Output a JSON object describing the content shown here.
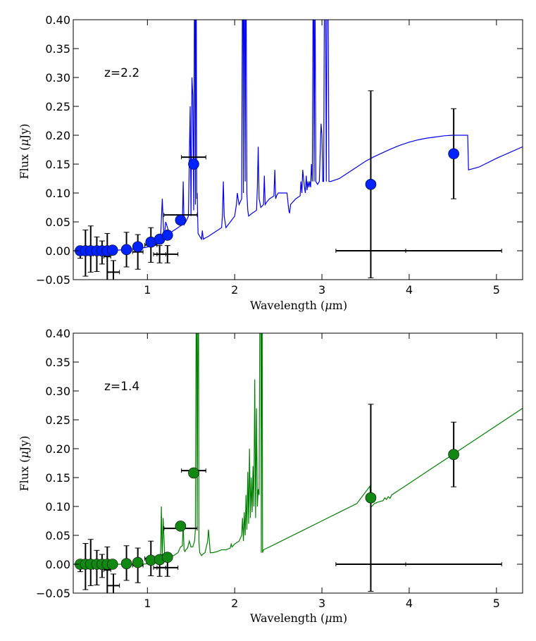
{
  "chart_data": [
    {
      "type": "line",
      "panel": "top",
      "annotation": "z=2.2",
      "xlabel": "Wavelength (μm)",
      "ylabel": "Flux (μJy)",
      "xlim": [
        0.15,
        5.3
      ],
      "ylim": [
        -0.05,
        0.4
      ],
      "xticks": [
        1,
        2,
        3,
        4,
        5
      ],
      "xtick_labels": [
        "1",
        "2",
        "3",
        "4",
        "5"
      ],
      "yticks": [
        -0.05,
        0.0,
        0.05,
        0.1,
        0.15,
        0.2,
        0.25,
        0.3,
        0.35,
        0.4
      ],
      "ytick_labels": [
        "−0.05",
        "0.00",
        "0.05",
        "0.10",
        "0.15",
        "0.20",
        "0.25",
        "0.30",
        "0.35",
        "0.40"
      ],
      "model_color": "#0000ee",
      "marker_color": "#0022ff",
      "model": {
        "x": [
          0.15,
          0.25,
          0.35,
          0.45,
          0.55,
          0.65,
          0.75,
          0.85,
          0.95,
          1.05,
          1.12,
          1.15,
          1.17,
          1.19,
          1.21,
          1.25,
          1.3,
          1.35,
          1.4,
          1.41,
          1.42,
          1.44,
          1.47,
          1.49,
          1.5,
          1.51,
          1.52,
          1.53,
          1.54,
          1.545,
          1.55,
          1.555,
          1.56,
          1.565,
          1.57,
          1.58,
          1.6,
          1.62,
          1.63,
          1.64,
          1.66,
          1.7,
          1.75,
          1.8,
          1.85,
          1.86,
          1.87,
          1.88,
          1.9,
          1.95,
          2.0,
          2.01,
          2.02,
          2.03,
          2.05,
          2.08,
          2.09,
          2.095,
          2.1,
          2.105,
          2.11,
          2.12,
          2.125,
          2.13,
          2.14,
          2.15,
          2.16,
          2.2,
          2.25,
          2.26,
          2.27,
          2.28,
          2.3,
          2.33,
          2.34,
          2.35,
          2.37,
          2.4,
          2.45,
          2.46,
          2.47,
          2.48,
          2.5,
          2.55,
          2.6,
          2.62,
          2.63,
          2.64,
          2.7,
          2.75,
          2.76,
          2.77,
          2.78,
          2.8,
          2.81,
          2.82,
          2.83,
          2.84,
          2.85,
          2.86,
          2.87,
          2.88,
          2.89,
          2.9,
          2.905,
          2.91,
          2.92,
          2.93,
          2.95,
          2.97,
          2.99,
          3.0,
          3.01,
          3.02,
          3.03,
          3.04,
          3.05,
          3.06,
          3.07,
          3.08,
          3.1,
          3.2,
          3.3,
          3.4,
          3.5,
          3.6,
          3.7,
          3.8,
          3.9,
          4.0,
          4.1,
          4.2,
          4.3,
          4.4,
          4.5,
          4.6,
          4.67,
          4.68,
          4.8,
          5.0,
          5.3
        ],
        "y": [
          0.0,
          0.0,
          0.0,
          0.0,
          0.001,
          0.001,
          0.002,
          0.003,
          0.005,
          0.008,
          0.012,
          0.02,
          0.09,
          0.02,
          0.05,
          0.03,
          0.035,
          0.04,
          0.045,
          0.12,
          0.045,
          0.05,
          0.06,
          0.25,
          0.06,
          0.3,
          0.27,
          0.07,
          0.5,
          0.5,
          0.08,
          0.4,
          0.4,
          0.09,
          0.1,
          0.03,
          0.025,
          0.02,
          0.035,
          0.02,
          0.022,
          0.025,
          0.03,
          0.035,
          0.04,
          0.06,
          0.12,
          0.06,
          0.04,
          0.05,
          0.06,
          0.07,
          0.08,
          0.1,
          0.08,
          0.09,
          0.5,
          0.5,
          0.1,
          0.5,
          0.5,
          0.12,
          0.5,
          0.5,
          0.1,
          0.07,
          0.06,
          0.065,
          0.07,
          0.11,
          0.18,
          0.09,
          0.075,
          0.08,
          0.13,
          0.08,
          0.085,
          0.09,
          0.095,
          0.14,
          0.09,
          0.095,
          0.1,
          0.1,
          0.1,
          0.07,
          0.065,
          0.08,
          0.09,
          0.095,
          0.12,
          0.1,
          0.14,
          0.11,
          0.1,
          0.13,
          0.105,
          0.12,
          0.11,
          0.12,
          0.11,
          0.15,
          0.12,
          0.5,
          0.5,
          0.12,
          0.5,
          0.12,
          0.115,
          0.12,
          0.22,
          0.2,
          0.12,
          0.12,
          0.5,
          0.5,
          0.12,
          0.5,
          0.5,
          0.12,
          0.12,
          0.125,
          0.135,
          0.145,
          0.155,
          0.163,
          0.17,
          0.177,
          0.183,
          0.188,
          0.192,
          0.195,
          0.197,
          0.199,
          0.2,
          0.2,
          0.2,
          0.14,
          0.145,
          0.16,
          0.18
        ]
      },
      "points": {
        "x": [
          0.23,
          0.29,
          0.35,
          0.42,
          0.48,
          0.54,
          0.6,
          0.76,
          0.89,
          1.04,
          1.14,
          1.23,
          1.38,
          1.53,
          3.56,
          4.51
        ],
        "y": [
          0.0,
          0.0,
          0.0,
          0.0,
          0.0,
          0.0,
          0.001,
          0.002,
          0.007,
          0.015,
          0.02,
          0.027,
          0.053,
          0.15,
          0.115,
          0.168
        ]
      },
      "error_points": {
        "x": [
          0.23,
          0.29,
          0.35,
          0.42,
          0.48,
          0.54,
          0.61,
          0.76,
          0.89,
          1.04,
          1.14,
          1.23,
          1.38,
          1.53,
          3.56,
          4.51,
          3.56,
          4.51
        ],
        "y": [
          -0.003,
          -0.004,
          0.003,
          -0.006,
          -0.003,
          -0.01,
          -0.037,
          0.002,
          -0.002,
          0.01,
          -0.006,
          -0.006,
          0.062,
          0.162,
          0.115,
          0.168,
          0.0,
          0.0
        ],
        "xerr": [
          0.02,
          0.03,
          0.04,
          0.04,
          0.04,
          0.04,
          0.07,
          0.05,
          0.06,
          0.07,
          0.07,
          0.12,
          0.19,
          0.14,
          0,
          0,
          0.4,
          0.55
        ],
        "yerr": [
          0.01,
          0.04,
          0.04,
          0.03,
          0.02,
          0.04,
          0.02,
          0.03,
          0.03,
          0.03,
          0.015,
          0.015,
          0,
          0,
          0.162,
          0.078,
          0,
          0
        ]
      }
    },
    {
      "type": "line",
      "panel": "bottom",
      "annotation": "z=1.4",
      "xlabel": "Wavelength (μm)",
      "ylabel": "Flux (μJy)",
      "xlim": [
        0.15,
        5.3
      ],
      "ylim": [
        -0.05,
        0.4
      ],
      "xticks": [
        1,
        2,
        3,
        4,
        5
      ],
      "xtick_labels": [
        "1",
        "2",
        "3",
        "4",
        "5"
      ],
      "yticks": [
        -0.05,
        0.0,
        0.05,
        0.1,
        0.15,
        0.2,
        0.25,
        0.3,
        0.35,
        0.4
      ],
      "ytick_labels": [
        "−0.05",
        "0.00",
        "0.05",
        "0.10",
        "0.15",
        "0.20",
        "0.25",
        "0.30",
        "0.35",
        "0.40"
      ],
      "model_color": "#008000",
      "marker_color": "#118811",
      "model": {
        "x": [
          0.15,
          0.25,
          0.35,
          0.45,
          0.55,
          0.65,
          0.75,
          0.85,
          0.95,
          1.05,
          1.1,
          1.15,
          1.16,
          1.17,
          1.18,
          1.2,
          1.25,
          1.3,
          1.35,
          1.38,
          1.4,
          1.41,
          1.42,
          1.43,
          1.44,
          1.46,
          1.48,
          1.5,
          1.52,
          1.54,
          1.55,
          1.56,
          1.565,
          1.57,
          1.58,
          1.585,
          1.59,
          1.6,
          1.62,
          1.64,
          1.66,
          1.69,
          1.7,
          1.71,
          1.72,
          1.75,
          1.8,
          1.85,
          1.9,
          1.95,
          1.96,
          1.97,
          2.0,
          2.05,
          2.08,
          2.09,
          2.1,
          2.11,
          2.12,
          2.13,
          2.14,
          2.15,
          2.16,
          2.17,
          2.18,
          2.19,
          2.2,
          2.21,
          2.22,
          2.23,
          2.24,
          2.25,
          2.26,
          2.27,
          2.28,
          2.29,
          2.3,
          2.305,
          2.31,
          2.315,
          2.32,
          2.33,
          2.4,
          2.6,
          2.8,
          3.0,
          3.2,
          3.4,
          3.55,
          3.56,
          3.6,
          3.65,
          3.7,
          3.72,
          3.74,
          3.76,
          3.78,
          3.8,
          3.9,
          4.0,
          4.2,
          4.4,
          4.6,
          4.8,
          5.0,
          5.3
        ],
        "y": [
          0.0,
          0.0,
          0.0,
          0.0,
          0.0,
          0.0,
          0.0,
          0.0,
          0.0,
          0.002,
          0.004,
          0.005,
          0.1,
          0.005,
          0.08,
          0.01,
          0.012,
          0.015,
          0.02,
          0.03,
          0.032,
          0.07,
          0.025,
          0.022,
          0.025,
          0.028,
          0.04,
          0.03,
          0.03,
          0.04,
          0.06,
          0.5,
          0.5,
          0.06,
          0.5,
          0.5,
          0.04,
          0.02,
          0.015,
          0.018,
          0.02,
          0.04,
          0.06,
          0.04,
          0.02,
          0.02,
          0.022,
          0.025,
          0.025,
          0.028,
          0.035,
          0.03,
          0.035,
          0.04,
          0.05,
          0.08,
          0.04,
          0.09,
          0.05,
          0.12,
          0.06,
          0.16,
          0.07,
          0.2,
          0.08,
          0.15,
          0.09,
          0.17,
          0.1,
          0.32,
          0.08,
          0.27,
          0.1,
          0.13,
          0.12,
          0.5,
          0.5,
          0.02,
          0.5,
          0.5,
          0.02,
          0.025,
          0.03,
          0.045,
          0.06,
          0.075,
          0.09,
          0.105,
          0.135,
          0.098,
          0.105,
          0.108,
          0.11,
          0.115,
          0.112,
          0.117,
          0.114,
          0.12,
          0.13,
          0.14,
          0.16,
          0.18,
          0.2,
          0.22,
          0.24,
          0.27
        ]
      },
      "points": {
        "x": [
          0.23,
          0.29,
          0.35,
          0.42,
          0.48,
          0.54,
          0.6,
          0.76,
          0.89,
          1.04,
          1.14,
          1.23,
          1.38,
          1.53,
          3.56,
          4.51
        ],
        "y": [
          0.0,
          0.0,
          0.0,
          0.0,
          0.0,
          0.0,
          0.0,
          0.001,
          0.003,
          0.007,
          0.008,
          0.012,
          0.066,
          0.158,
          0.115,
          0.19
        ]
      },
      "error_points": {
        "x": [
          0.23,
          0.29,
          0.35,
          0.42,
          0.48,
          0.54,
          0.61,
          0.76,
          0.89,
          1.04,
          1.14,
          1.23,
          1.38,
          1.53,
          3.56,
          4.51,
          3.56,
          4.51
        ],
        "y": [
          -0.003,
          -0.004,
          0.003,
          -0.006,
          -0.003,
          -0.01,
          -0.037,
          0.002,
          -0.002,
          0.01,
          -0.006,
          -0.006,
          0.062,
          0.162,
          0.115,
          0.19,
          0.0,
          0.0
        ],
        "xerr": [
          0.02,
          0.03,
          0.04,
          0.04,
          0.04,
          0.04,
          0.07,
          0.05,
          0.06,
          0.07,
          0.07,
          0.12,
          0.19,
          0.14,
          0,
          0,
          0.4,
          0.55
        ],
        "yerr": [
          0.01,
          0.04,
          0.04,
          0.03,
          0.02,
          0.04,
          0.02,
          0.03,
          0.03,
          0.03,
          0.015,
          0.015,
          0,
          0,
          0.162,
          0.056,
          0,
          0
        ]
      }
    }
  ]
}
